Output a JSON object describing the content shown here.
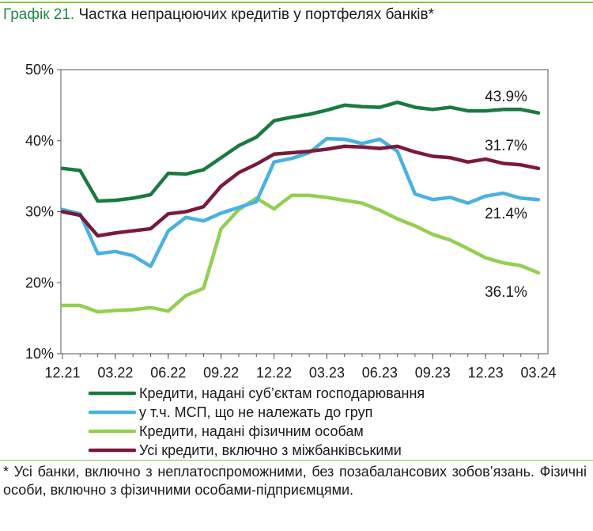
{
  "header": {
    "label": "Графік 21.",
    "text": " Частка непрацюючих кредитів у портфелях банків*"
  },
  "footnote": "* Усі банки, включно з неплатоспроможними, без позабалансових зобов’язань. Фізичні особи, включно з фізичними особами-підприємцями.",
  "chart_data": {
    "type": "line",
    "x": [
      "12.21",
      "01.22",
      "02.22",
      "03.22",
      "04.22",
      "05.22",
      "06.22",
      "07.22",
      "08.22",
      "09.22",
      "10.22",
      "11.22",
      "12.22",
      "01.23",
      "02.23",
      "03.23",
      "04.23",
      "05.23",
      "06.23",
      "07.23",
      "08.23",
      "09.23",
      "10.23",
      "11.23",
      "12.23",
      "01.24",
      "02.24",
      "03.24"
    ],
    "xticks": [
      "12.21",
      "03.22",
      "06.22",
      "09.22",
      "12.22",
      "03.23",
      "06.23",
      "09.23",
      "12.23",
      "03.24"
    ],
    "ylim": [
      10,
      50
    ],
    "yticks": [
      "10%",
      "20%",
      "30%",
      "40%",
      "50%"
    ],
    "grid": false,
    "legend": "bottom",
    "series": [
      {
        "name": "Кредити, надані суб’єктам господарювання",
        "color": "#1a7a40",
        "values": [
          36.1,
          35.8,
          31.5,
          31.6,
          31.9,
          32.4,
          35.4,
          35.3,
          35.9,
          37.6,
          39.3,
          40.5,
          42.8,
          43.3,
          43.7,
          44.3,
          45.0,
          44.8,
          44.7,
          45.4,
          44.7,
          44.4,
          44.7,
          44.2,
          44.2,
          44.4,
          44.4,
          43.9
        ],
        "end_label": "43.9%"
      },
      {
        "name": "у т.ч. МСП, що не належать до груп",
        "color": "#4ab1e3",
        "values": [
          30.3,
          29.7,
          24.1,
          24.4,
          23.8,
          22.3,
          27.3,
          29.2,
          28.7,
          29.8,
          30.6,
          31.4,
          37.0,
          37.5,
          38.3,
          40.3,
          40.2,
          39.6,
          40.2,
          38.5,
          32.5,
          31.7,
          32.0,
          31.2,
          32.2,
          32.6,
          31.9,
          31.7
        ],
        "end_label": "31.7%"
      },
      {
        "name": "Кредити, надані фізичним особам",
        "color": "#92d050",
        "values": [
          16.8,
          16.8,
          15.9,
          16.1,
          16.2,
          16.5,
          16.0,
          18.2,
          19.2,
          27.6,
          30.3,
          31.9,
          30.4,
          32.3,
          32.3,
          32.0,
          31.6,
          31.2,
          30.2,
          29.0,
          28.0,
          26.8,
          26.0,
          24.8,
          23.5,
          22.8,
          22.4,
          21.4
        ],
        "end_label": "21.4%"
      },
      {
        "name": "Усі кредити, включно з міжбанківськими",
        "color": "#7a1a3a",
        "values": [
          30.0,
          29.5,
          26.6,
          27.0,
          27.3,
          27.6,
          29.7,
          30.0,
          30.7,
          33.6,
          35.5,
          36.7,
          38.1,
          38.3,
          38.5,
          38.8,
          39.2,
          39.1,
          38.9,
          39.2,
          38.4,
          37.8,
          37.6,
          37.0,
          37.4,
          36.8,
          36.6,
          36.1
        ],
        "end_label": "36.1%"
      }
    ]
  }
}
